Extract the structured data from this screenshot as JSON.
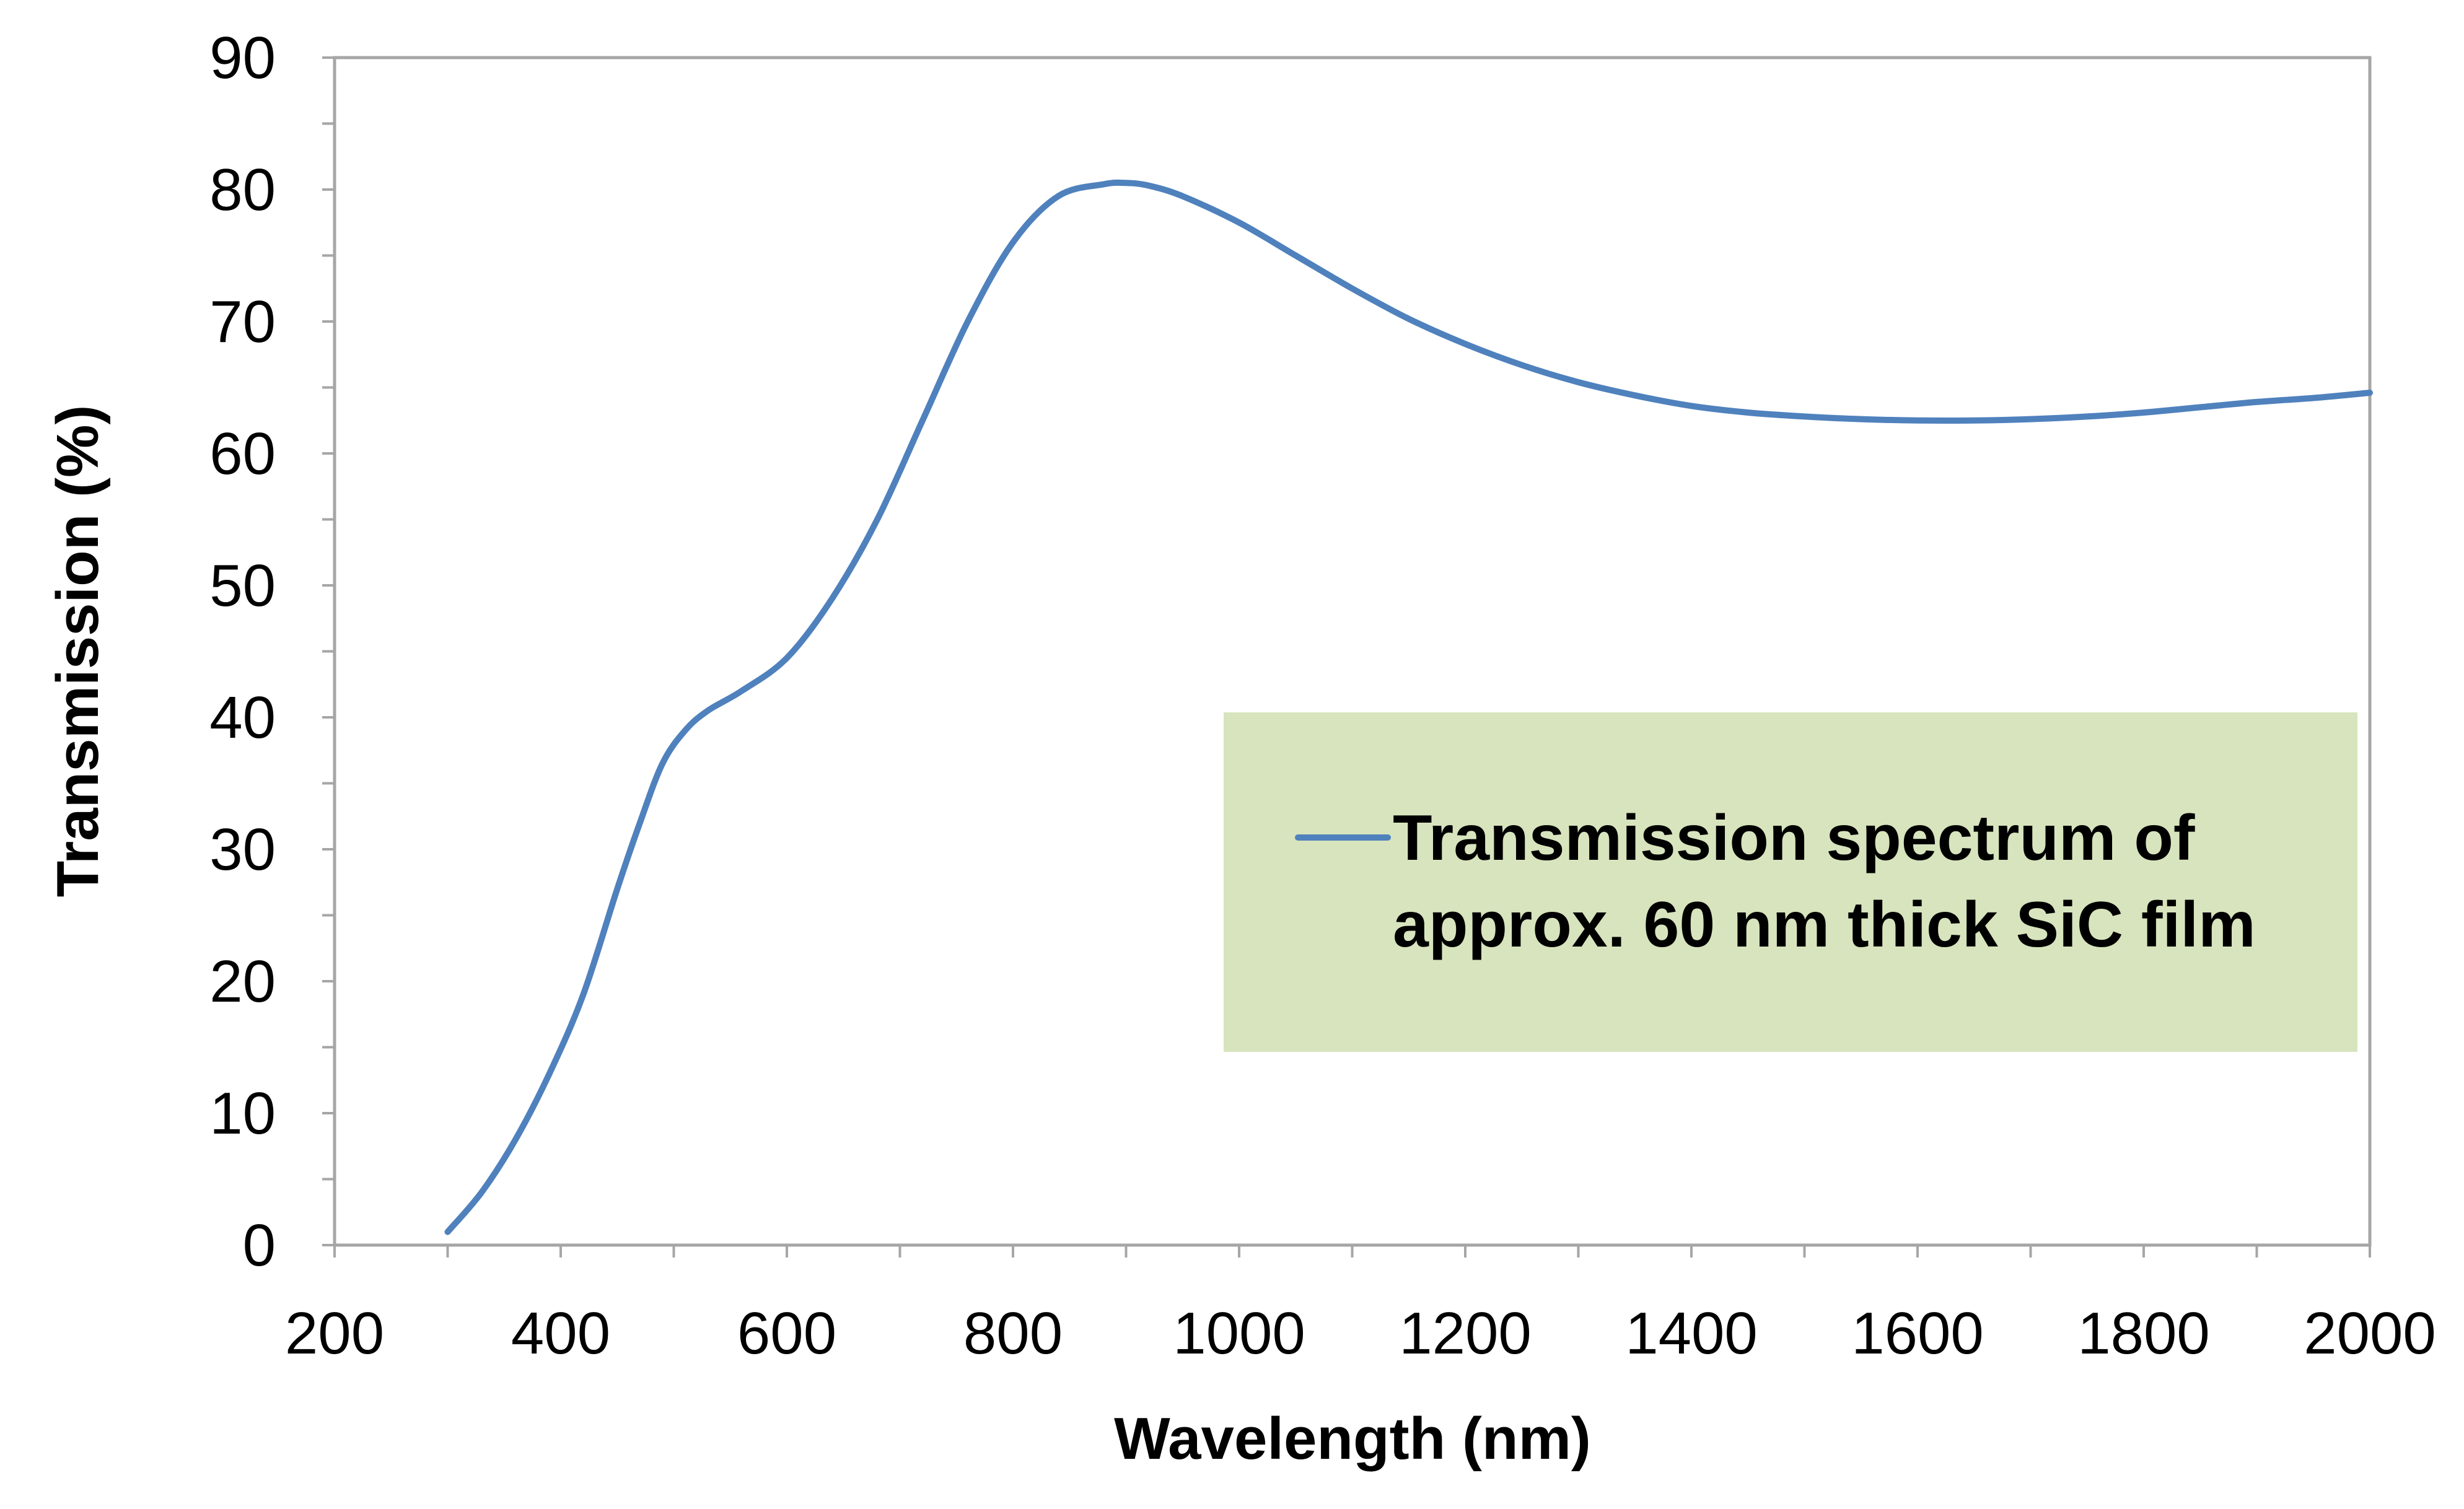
{
  "chart_data": {
    "type": "line",
    "title": "",
    "xlabel": "Wavelength (nm)",
    "ylabel": "Transmission (%)",
    "xlim": [
      200,
      2000
    ],
    "ylim": [
      0,
      90
    ],
    "x_major_ticks": [
      200,
      400,
      600,
      800,
      1000,
      1200,
      1400,
      1600,
      1800,
      2000
    ],
    "x_minor_step": 100,
    "y_major_ticks": [
      0,
      10,
      20,
      30,
      40,
      50,
      60,
      70,
      80,
      90
    ],
    "y_minor_step": 5,
    "grid": false,
    "legend_position": "center-right",
    "legend_box_color": "#d7e4bd",
    "series": [
      {
        "name": "Transmission spectrum of approx. 60 nm thick SiC film",
        "legend_lines": [
          "Transmission spectrum of",
          "approx. 60 nm thick SiC film"
        ],
        "color": "#4f81bd",
        "x": [
          300,
          330,
          360,
          390,
          420,
          450,
          470,
          490,
          510,
          530,
          560,
          600,
          640,
          680,
          720,
          760,
          800,
          840,
          880,
          900,
          920,
          950,
          1000,
          1050,
          1100,
          1150,
          1200,
          1250,
          1300,
          1350,
          1400,
          1450,
          1500,
          1550,
          1600,
          1650,
          1700,
          1750,
          1800,
          1850,
          1900,
          1950,
          2000
        ],
        "y": [
          1,
          4,
          8,
          13,
          19,
          27,
          32,
          36.5,
          39,
          40.5,
          42,
          44.5,
          49,
          55,
          62.5,
          70,
          76,
          79.5,
          80.4,
          80.5,
          80.3,
          79.5,
          77.5,
          75,
          72.5,
          70.2,
          68.3,
          66.7,
          65.4,
          64.4,
          63.6,
          63.1,
          62.8,
          62.6,
          62.5,
          62.5,
          62.6,
          62.8,
          63.1,
          63.5,
          63.9,
          64.2,
          64.6
        ]
      }
    ]
  }
}
